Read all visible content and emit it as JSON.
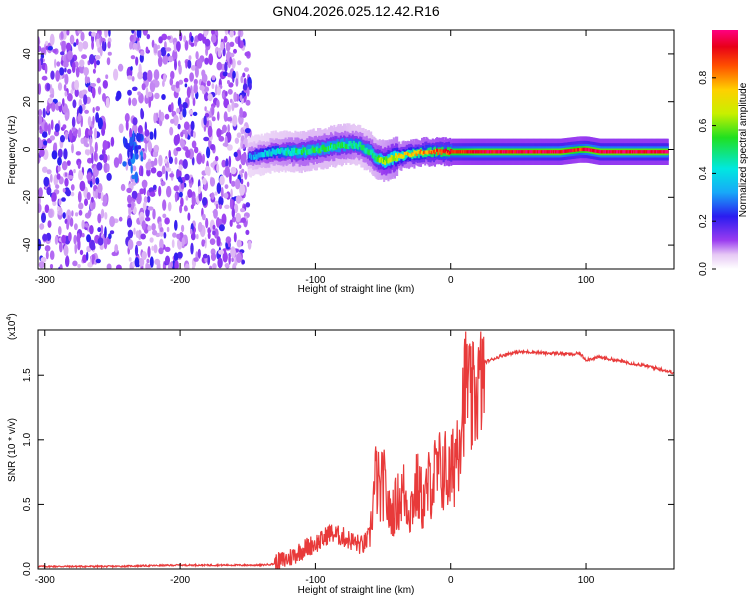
{
  "title": "GN04.2026.025.12.42.R16",
  "chart_data": [
    {
      "type": "heatmap",
      "xlabel": "Height of straight line (km)",
      "ylabel": "Frequency (Hz)",
      "xlim": [
        -305,
        165
      ],
      "ylim": [
        -50,
        50
      ],
      "xticks": [
        -300,
        -200,
        -100,
        0,
        100
      ],
      "yticks": [
        -40,
        -20,
        0,
        20,
        40
      ],
      "colorbar": {
        "label": "Normalized spectral amplitude",
        "range": [
          0,
          1
        ],
        "ticks": [
          "0.0",
          "0.2",
          "0.4",
          "0.6",
          "0.8"
        ]
      },
      "track": {
        "x": [
          -150,
          -130,
          -110,
          -100,
          -90,
          -80,
          -70,
          -60,
          -55,
          -50,
          -45,
          -40,
          -30,
          -20,
          -10,
          0,
          20,
          40,
          60,
          80,
          95,
          100,
          110,
          130,
          160
        ],
        "freq_hz": [
          -3,
          -1,
          -1,
          0,
          1,
          2,
          2,
          -1,
          -4,
          -5,
          -4,
          -3,
          -2,
          -1,
          -1,
          -1,
          -1,
          -1,
          -1,
          -1,
          0,
          0,
          -1,
          -1,
          -1
        ],
        "amplitude": [
          0.3,
          0.4,
          0.5,
          0.5,
          0.5,
          0.5,
          0.45,
          0.5,
          0.55,
          0.6,
          0.65,
          0.7,
          0.75,
          0.8,
          0.85,
          0.9,
          0.95,
          0.95,
          0.95,
          0.97,
          0.9,
          0.95,
          0.97,
          0.97,
          0.97
        ]
      },
      "noise_region_km": [
        -305,
        -148
      ]
    },
    {
      "type": "line",
      "xlabel": "Height of straight line (km)",
      "ylabel": "SNR (10 * v/v)",
      "scale_label": "(x10^4)",
      "scale_text": "(x10",
      "scale_exp": "4",
      "scale_close": ")",
      "xlim": [
        -305,
        165
      ],
      "ylim": [
        0,
        1.85
      ],
      "xticks": [
        -300,
        -200,
        -100,
        0,
        100
      ],
      "yticks": [
        "0.0",
        "0.5",
        "1.0",
        "1.5"
      ],
      "series": [
        {
          "name": "SNR",
          "color": "#e83a3a",
          "x": [
            -305,
            -250,
            -200,
            -150,
            -140,
            -130,
            -120,
            -110,
            -100,
            -95,
            -90,
            -80,
            -70,
            -65,
            -60,
            -58,
            -55,
            -52,
            -50,
            -45,
            -40,
            -35,
            -30,
            -25,
            -20,
            -15,
            -10,
            -5,
            0,
            5,
            10,
            12,
            15,
            20,
            25,
            30,
            40,
            50,
            60,
            70,
            80,
            90,
            95,
            100,
            110,
            120,
            130,
            140,
            150,
            165
          ],
          "y": [
            0.02,
            0.02,
            0.03,
            0.03,
            0.03,
            0.04,
            0.08,
            0.15,
            0.2,
            0.22,
            0.28,
            0.25,
            0.2,
            0.18,
            0.25,
            0.5,
            0.8,
            0.6,
            0.75,
            0.45,
            0.55,
            0.65,
            0.5,
            0.7,
            0.55,
            0.75,
            0.8,
            0.85,
            0.75,
            1.1,
            1.45,
            1.6,
            1.35,
            1.5,
            1.6,
            1.62,
            1.66,
            1.68,
            1.68,
            1.67,
            1.67,
            1.66,
            1.67,
            1.62,
            1.64,
            1.62,
            1.6,
            1.58,
            1.56,
            1.52
          ]
        }
      ]
    }
  ]
}
